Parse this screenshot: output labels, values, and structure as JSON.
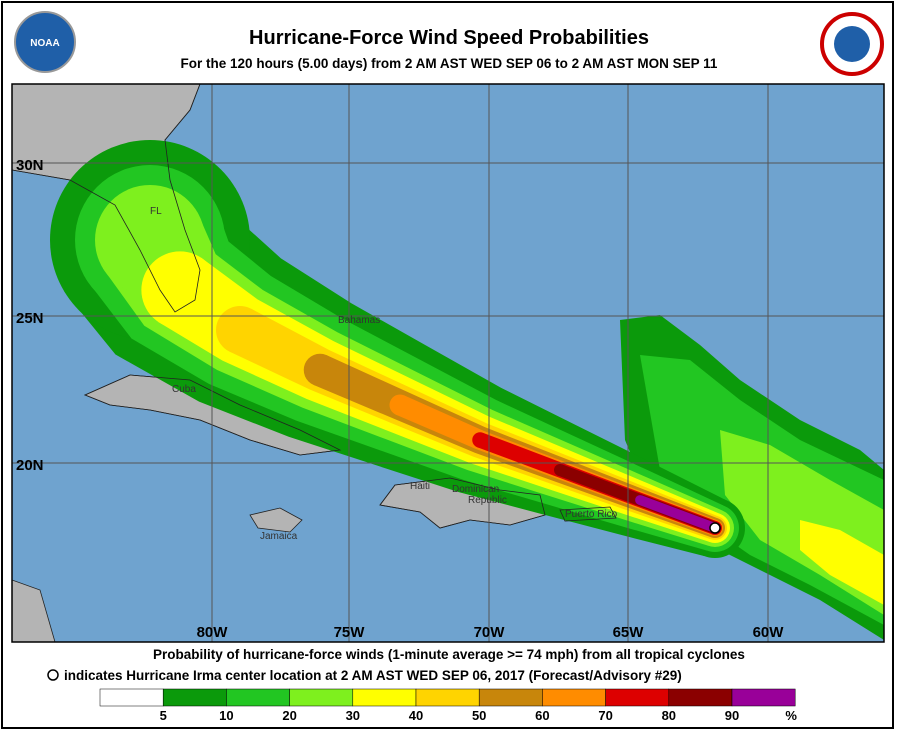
{
  "header": {
    "title": "Hurricane-Force Wind Speed Probabilities",
    "subtitle": "For the 120 hours (5.00 days) from 2 AM AST WED SEP 06 to 2 AM AST MON SEP 11",
    "logo_left": "NOAA"
  },
  "map": {
    "lat_labels": [
      "30N",
      "25N",
      "20N"
    ],
    "lon_labels": [
      "80W",
      "75W",
      "70W",
      "65W",
      "60W"
    ],
    "place_labels": [
      "FL",
      "Bahamas",
      "Cuba",
      "Haiti",
      "Dominican",
      "Republic",
      "Jamaica",
      "Puerto Rico"
    ]
  },
  "footer": {
    "line1": "Probability of hurricane-force winds (1-minute average >= 74 mph) from all tropical cyclones",
    "line2": "indicates Hurricane Irma center location at 2 AM AST WED SEP 06, 2017 (Forecast/Advisory #29)"
  },
  "legend": {
    "labels": [
      "5",
      "10",
      "20",
      "30",
      "40",
      "50",
      "60",
      "70",
      "80",
      "90"
    ],
    "unit": "%",
    "colors": [
      "#ffffff",
      "#0b9a0b",
      "#22c622",
      "#7ef01e",
      "#ffff00",
      "#ffd400",
      "#c8860b",
      "#ff8c00",
      "#dd0000",
      "#8b0000",
      "#990099"
    ]
  }
}
